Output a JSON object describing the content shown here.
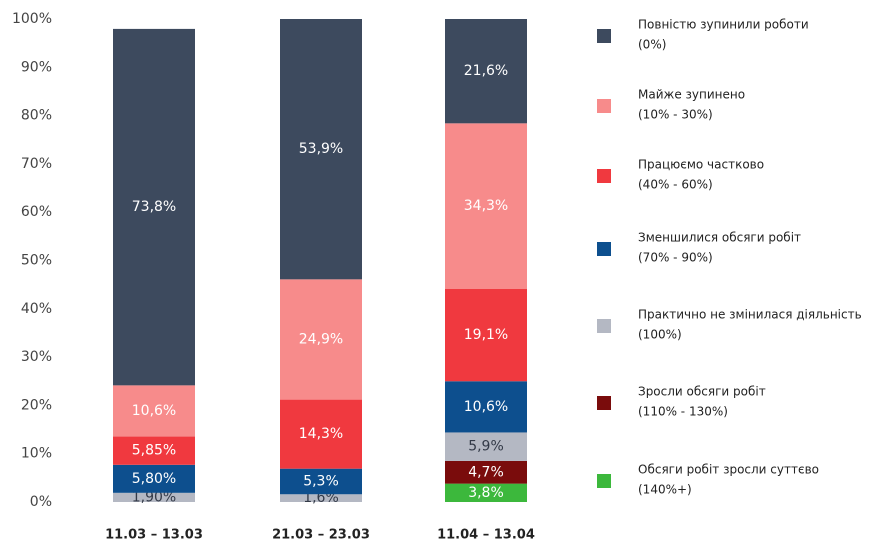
{
  "chart_data": {
    "type": "stacked_bar",
    "categories": [
      "11.03 – 13.03",
      "21.03 – 23.03",
      "11.04 – 13.04"
    ],
    "ylim": [
      0,
      100
    ],
    "yticks": [
      {
        "value": 0,
        "label": "0%"
      },
      {
        "value": 10,
        "label": "10%"
      },
      {
        "value": 20,
        "label": "20%"
      },
      {
        "value": 30,
        "label": "30%"
      },
      {
        "value": 40,
        "label": "40%"
      },
      {
        "value": 50,
        "label": "50%"
      },
      {
        "value": 60,
        "label": "60%"
      },
      {
        "value": 70,
        "label": "70%"
      },
      {
        "value": 80,
        "label": "80%"
      },
      {
        "value": 90,
        "label": "90%"
      },
      {
        "value": 100,
        "label": "100%"
      }
    ],
    "series": [
      {
        "name": "Обсяги робіт зросли суттєво",
        "range": "(140%+)",
        "color": "#3cb83c",
        "label_color": "#ffffff",
        "values": [
          null,
          null,
          3.8
        ],
        "value_labels": [
          null,
          null,
          "3,8%"
        ]
      },
      {
        "name": "Зросли обсяги робіт",
        "range": "(110% - 130%)",
        "color": "#7a0c0c",
        "label_color": "#ffffff",
        "values": [
          null,
          null,
          4.7
        ],
        "value_labels": [
          null,
          null,
          "4,7%"
        ]
      },
      {
        "name": "Практично не змінилася діяльність",
        "range": "(100%)",
        "color": "#b4b8c3",
        "label_color": "#333a48",
        "values": [
          1.9,
          1.6,
          5.9
        ],
        "value_labels": [
          "1,90%",
          "1,6%",
          "5,9%"
        ]
      },
      {
        "name": "Зменшилися обсяги робіт",
        "range": "(70% - 90%)",
        "color": "#0d4f8e",
        "label_color": "#ffffff",
        "values": [
          5.8,
          5.3,
          10.6
        ],
        "value_labels": [
          "5,80%",
          "5,3%",
          "10,6%"
        ]
      },
      {
        "name": "Працюємо частково",
        "range": "(40% - 60%)",
        "color": "#f0393f",
        "label_color": "#ffffff",
        "values": [
          5.85,
          14.3,
          19.1
        ],
        "value_labels": [
          "5,85%",
          "14,3%",
          "19,1%"
        ]
      },
      {
        "name": "Майже зупинено",
        "range": "(10% - 30%)",
        "color": "#f78b8b",
        "label_color": "#ffffff",
        "values": [
          10.6,
          24.9,
          34.3
        ],
        "value_labels": [
          "10,6%",
          "24,9%",
          "34,3%"
        ]
      },
      {
        "name": "Повністю зупинили роботи",
        "range": "(0%)",
        "color": "#3d4a5e",
        "label_color": "#ffffff",
        "values": [
          73.8,
          53.9,
          21.6
        ],
        "value_labels": [
          "73,8%",
          "53,9%",
          "21,6%"
        ]
      }
    ]
  }
}
